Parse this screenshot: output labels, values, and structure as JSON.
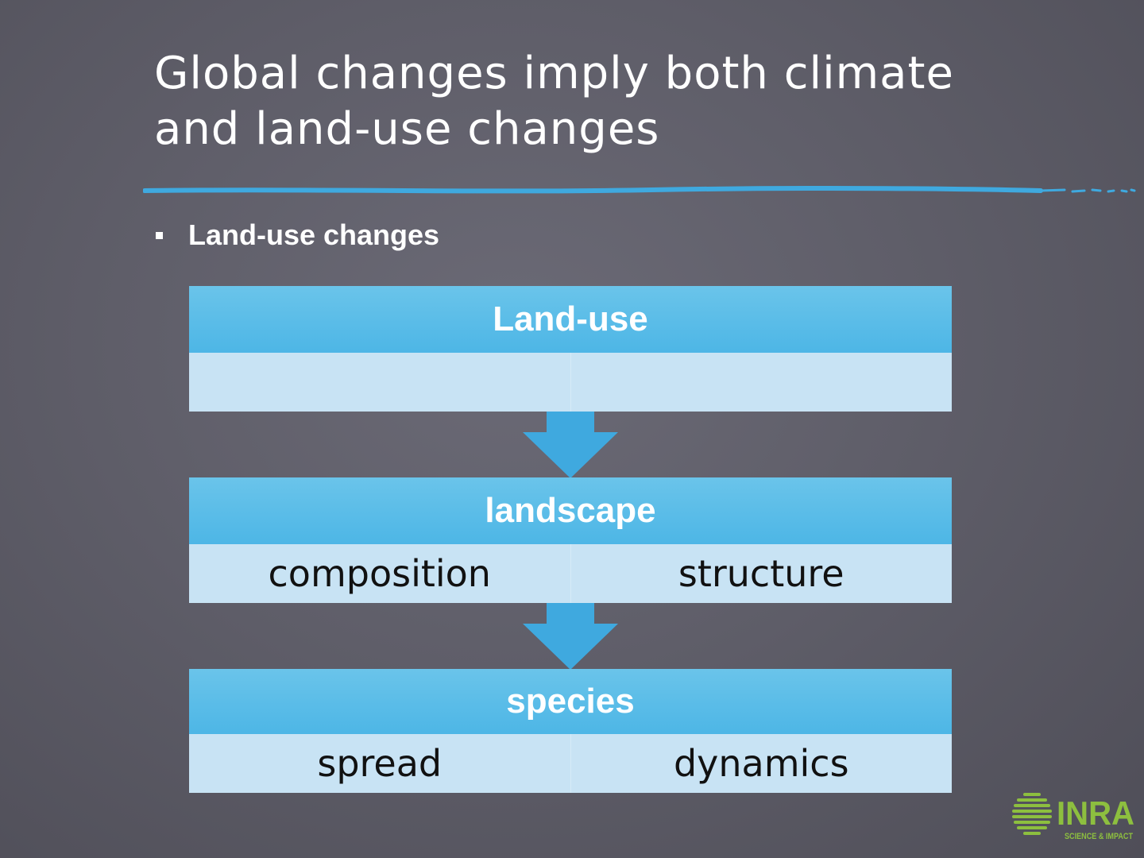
{
  "title": "Global changes imply both climate and land-use changes",
  "bullet": "Land-use changes",
  "blocks": [
    {
      "header": "Land-use",
      "cells": []
    },
    {
      "header": "landscape",
      "cells": [
        "composition",
        "structure"
      ]
    },
    {
      "header": "species",
      "cells": [
        "spread",
        "dynamics"
      ]
    }
  ],
  "logo": {
    "name": "INRA",
    "tagline": "SCIENCE & IMPACT"
  },
  "colors": {
    "background": "#5f5e69",
    "header_blue": "#4db6e6",
    "body_blue": "#c8e3f4",
    "arrow_blue": "#3fa9df",
    "divider_blue": "#3fa9df",
    "logo_green": "#8dbf3f"
  }
}
